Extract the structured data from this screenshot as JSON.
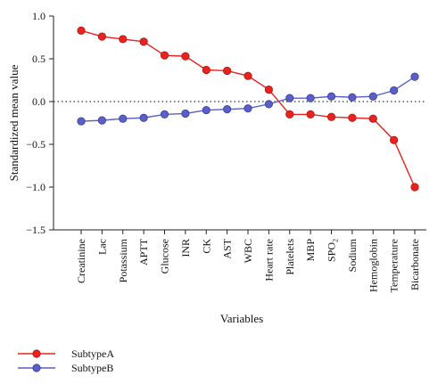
{
  "chart_data": {
    "type": "line",
    "xlabel": "Variables",
    "ylabel": "Standardized mean value",
    "ylim": [
      -1.5,
      1.0
    ],
    "yticks": [
      "1.0",
      "0.5",
      "0.0",
      "−0.5",
      "−1.0",
      "−1.5"
    ],
    "ytick_values": [
      1.0,
      0.5,
      0.0,
      -0.5,
      -1.0,
      -1.5
    ],
    "reference_line": {
      "y": 0,
      "style": "dotted"
    },
    "categories": [
      "Creatinine",
      "Lac",
      "Potassium",
      "APTT",
      "Glucose",
      "INR",
      "CK",
      "AST",
      "WBC",
      "Heart rate",
      "Platelets",
      "MBP",
      "SPO",
      "Sodium",
      "Hemoglobin",
      "Temperature",
      "Bicarbonate"
    ],
    "category_subscripts": {
      "SPO": "2"
    },
    "series": [
      {
        "name": "SubtypeA",
        "color": "#e8231f",
        "values": [
          0.83,
          0.76,
          0.73,
          0.7,
          0.54,
          0.53,
          0.37,
          0.36,
          0.3,
          0.14,
          -0.15,
          -0.15,
          -0.18,
          -0.19,
          -0.2,
          -0.45,
          -1.0
        ]
      },
      {
        "name": "SubtypeB",
        "color": "#5a5fc8",
        "values": [
          -0.23,
          -0.22,
          -0.2,
          -0.19,
          -0.15,
          -0.14,
          -0.1,
          -0.09,
          -0.08,
          -0.03,
          0.04,
          0.04,
          0.06,
          0.05,
          0.06,
          0.13,
          0.29
        ]
      }
    ],
    "legend_position": "bottom-left"
  }
}
